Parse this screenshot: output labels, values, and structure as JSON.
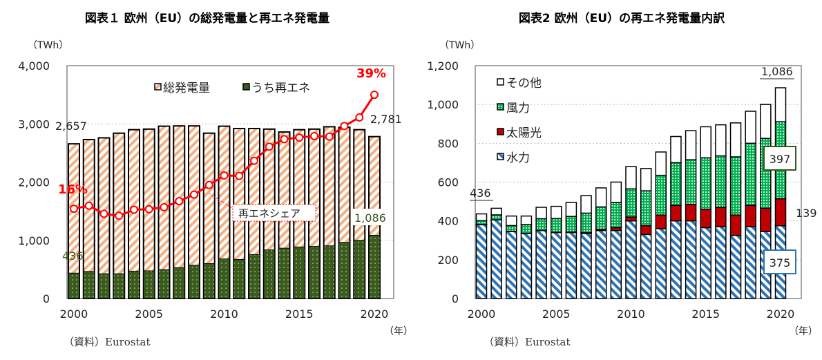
{
  "colors": {
    "total": "#f4b183",
    "renewable": "#3b5a1d",
    "share": "#ff0000",
    "hydro": "#2e75b6",
    "solar": "#c00000",
    "wind": "#00b050",
    "other": "#ffffff"
  },
  "chart_data": [
    {
      "type": "bar",
      "title": "図表１ 欧州（EU）の総発電量と再エネ発電量",
      "ylabel": "（TWh）",
      "xlabel": "（年）",
      "source": "（資料）Eurostat",
      "ylim": [
        0,
        4000
      ],
      "yticks": [
        "0",
        "1,000",
        "2,000",
        "3,000",
        "4,000"
      ],
      "xticks": [
        "2000",
        "2005",
        "2010",
        "2015",
        "2020"
      ],
      "x": [
        2000,
        2001,
        2002,
        2003,
        2004,
        2005,
        2006,
        2007,
        2008,
        2009,
        2010,
        2011,
        2012,
        2013,
        2014,
        2015,
        2016,
        2017,
        2018,
        2019,
        2020
      ],
      "legend": [
        "総発電量",
        "うち再エネ"
      ],
      "series": [
        {
          "name": "総発電量",
          "values": [
            2657,
            2730,
            2760,
            2840,
            2900,
            2910,
            2960,
            2965,
            2965,
            2840,
            2960,
            2920,
            2920,
            2910,
            2860,
            2900,
            2910,
            2950,
            2940,
            2900,
            2781
          ]
        },
        {
          "name": "うち再エネ",
          "values": [
            436,
            465,
            425,
            425,
            470,
            475,
            495,
            530,
            570,
            600,
            680,
            670,
            755,
            835,
            865,
            885,
            895,
            905,
            965,
            1000,
            1086
          ]
        },
        {
          "name": "再エネシェア",
          "unit": "%",
          "values": [
            16.4,
            17.0,
            15.4,
            15.0,
            16.2,
            16.3,
            16.7,
            17.9,
            19.2,
            21.1,
            23.0,
            22.9,
            25.9,
            28.7,
            30.2,
            30.5,
            30.8,
            30.7,
            32.8,
            34.5,
            39.0
          ]
        }
      ],
      "annotations": {
        "total_2000": "2,657",
        "total_2020": "2,781",
        "ren_2000": "436",
        "ren_2020": "1,086",
        "share_2000": "16%",
        "share_2020": "39%",
        "share_label": "再エネシェア"
      }
    },
    {
      "type": "bar",
      "title": "図表2 欧州（EU）の再エネ発電量内訳",
      "ylabel": "（TWh）",
      "xlabel": "（年）",
      "source": "（資料）Eurostat",
      "ylim": [
        0,
        1200
      ],
      "yticks": [
        "0",
        "200",
        "400",
        "600",
        "800",
        "1,000",
        "1,200"
      ],
      "xticks": [
        "2000",
        "2005",
        "2010",
        "2015",
        "2020"
      ],
      "x": [
        2000,
        2001,
        2002,
        2003,
        2004,
        2005,
        2006,
        2007,
        2008,
        2009,
        2010,
        2011,
        2012,
        2013,
        2014,
        2015,
        2016,
        2017,
        2018,
        2019,
        2020
      ],
      "legend": [
        "その他",
        "風力",
        "太陽光",
        "水力"
      ],
      "series": [
        {
          "name": "水力",
          "values": [
            380,
            405,
            345,
            335,
            350,
            340,
            340,
            335,
            350,
            350,
            400,
            330,
            360,
            400,
            400,
            365,
            370,
            325,
            370,
            345,
            375
          ]
        },
        {
          "name": "太陽光",
          "values": [
            1,
            1,
            1,
            1,
            1,
            2,
            3,
            5,
            7,
            15,
            20,
            45,
            70,
            80,
            85,
            95,
            100,
            105,
            110,
            120,
            139
          ]
        },
        {
          "name": "風力",
          "values": [
            20,
            25,
            30,
            45,
            60,
            70,
            80,
            100,
            115,
            130,
            145,
            180,
            205,
            220,
            230,
            265,
            265,
            300,
            320,
            360,
            397
          ]
        },
        {
          "name": "その他",
          "values": [
            35,
            34,
            49,
            44,
            59,
            63,
            72,
            90,
            98,
            105,
            115,
            115,
            120,
            135,
            150,
            160,
            160,
            175,
            165,
            175,
            175
          ]
        }
      ],
      "annotations": {
        "total_2000": "436",
        "total_2020": "1,086",
        "wind_2020": "397",
        "solar_2020": "139",
        "hydro_2020": "375"
      }
    }
  ]
}
